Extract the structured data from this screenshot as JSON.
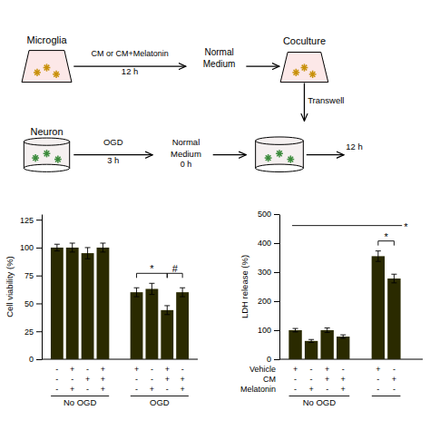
{
  "chart_data": [
    {
      "type": "diagram",
      "annotations": [
        "Microglia",
        "CM or CM+Melatonin",
        "12 h",
        "Normal",
        "Medium",
        "Coculture",
        "Transwell",
        "Neuron",
        "OGD",
        "3 h",
        "Normal",
        "Medium",
        "0 h",
        "12 h"
      ],
      "colors": [
        "#fce8e8",
        "#c8900a",
        "#3a8a3a",
        "#f5f0f0"
      ]
    },
    {
      "type": "bar",
      "ylabel": "Cell viability (%)",
      "categories": [
        null,
        null,
        null,
        null,
        null,
        null,
        null,
        null
      ],
      "values": [
        100,
        100,
        95,
        100,
        60,
        63,
        44,
        60
      ],
      "errors": [
        3,
        4,
        5,
        4,
        4,
        5,
        4,
        4
      ],
      "color": "#2a2a00",
      "ylim": [
        0,
        130
      ],
      "yticks": [
        0,
        25,
        50,
        75,
        100,
        125
      ],
      "tick_labels": "y",
      "rows": [
        {
          "signs": [
            "-",
            "+",
            "-",
            "+",
            "+",
            "-",
            "+",
            "-"
          ]
        },
        {
          "signs": [
            "-",
            "-",
            "+",
            "+",
            "-",
            "-",
            "+",
            "+"
          ]
        },
        {
          "signs": [
            "-",
            "+",
            "-",
            "+",
            "-",
            "+",
            "-",
            "+"
          ]
        }
      ],
      "groups": [
        {
          "label": "No OGD",
          "count": 4
        },
        {
          "label": "OGD",
          "count": 4
        }
      ],
      "annotations": [
        {
          "text": "*",
          "from": 4,
          "to": 6,
          "type": "bracket"
        },
        {
          "text": "#",
          "from": 6,
          "to": 7,
          "type": "bracket"
        }
      ]
    },
    {
      "type": "bar",
      "ylabel": "LDH release (%)",
      "categories": [
        null,
        null,
        null,
        null,
        null,
        null
      ],
      "values": [
        100,
        63,
        100,
        78,
        355,
        278
      ],
      "errors": [
        6,
        5,
        8,
        6,
        18,
        15
      ],
      "color": "#2a2a00",
      "ylim": [
        0,
        500
      ],
      "yticks": [
        0,
        100,
        200,
        300,
        400,
        500
      ],
      "tick_labels": "y",
      "rows": [
        {
          "name": "Vehicle",
          "signs": [
            "+",
            "-",
            "+",
            "-",
            "+",
            "-"
          ]
        },
        {
          "name": "CM",
          "signs": [
            "-",
            "-",
            "+",
            "+",
            "-",
            "+"
          ]
        },
        {
          "name": "Melatonin",
          "signs": [
            "-",
            "+",
            "-",
            "+",
            "-",
            "-"
          ]
        }
      ],
      "groups": [
        {
          "label": "No OGD",
          "count": 4
        },
        {
          "count": 2
        }
      ],
      "annotations": [
        {
          "text": "*",
          "from": 4,
          "to": 5,
          "type": "bracket"
        },
        {
          "text": "*",
          "from": 0,
          "to": 5,
          "type": "line"
        }
      ]
    }
  ]
}
